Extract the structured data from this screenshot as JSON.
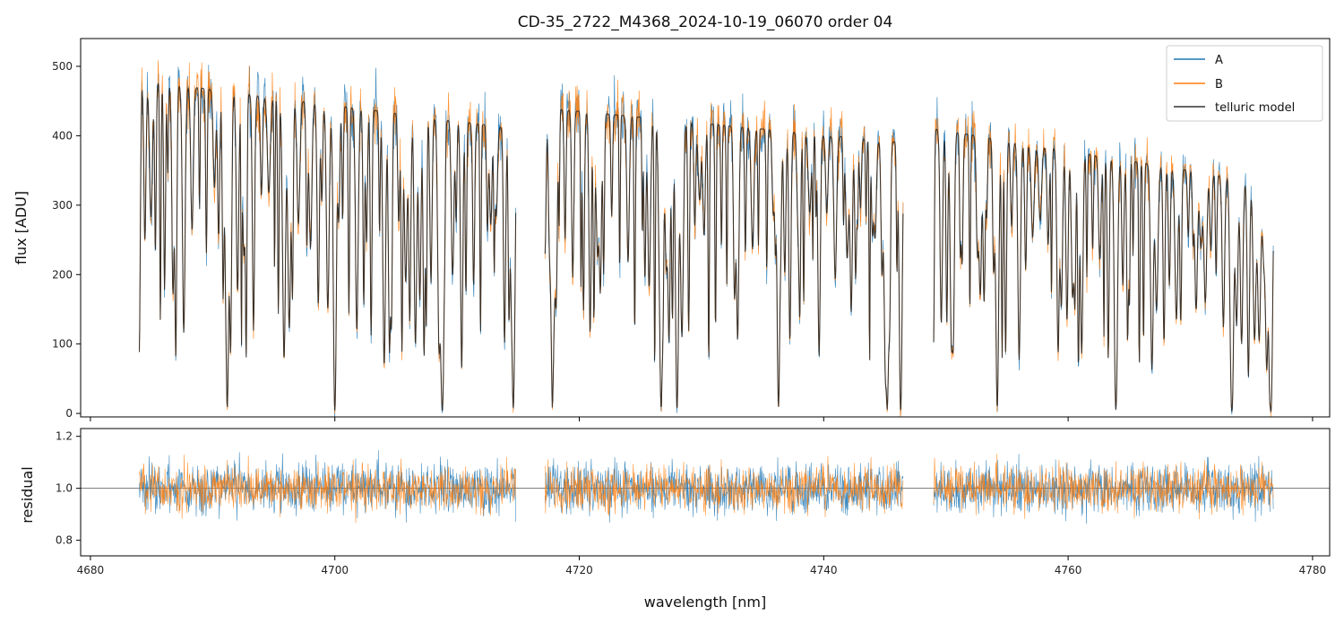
{
  "chart_data": {
    "type": "line",
    "title": "CD-35_2722_M4368_2024-10-19_06070  order 04",
    "xlabel": "wavelength [nm]",
    "xlim": [
      4679.2,
      4781.4
    ],
    "xticks": [
      4680,
      4700,
      4720,
      4740,
      4760,
      4780
    ],
    "colors": {
      "A": "#1f77b4",
      "B": "#ff7f0e",
      "model": "#1a1a1a",
      "unity": "#333333"
    },
    "legend": {
      "position": "top-right",
      "entries": [
        "A",
        "B",
        "telluric model"
      ]
    },
    "panels": {
      "flux": {
        "ylabel": "flux [ADU]",
        "ylim": [
          -5,
          540
        ],
        "yticks": [
          0,
          100,
          200,
          300,
          400,
          500
        ]
      },
      "residual": {
        "ylabel": "residual",
        "ylim": [
          0.74,
          1.23
        ],
        "yticks": [
          0.8,
          1.0,
          1.2
        ],
        "reference_line": 1.0
      }
    },
    "segments": [
      {
        "start": 4684.0,
        "end": 4714.8,
        "continuum_start": 480,
        "continuum_end": 410
      },
      {
        "start": 4717.2,
        "end": 4746.5,
        "continuum_start": 440,
        "continuum_end": 390
      },
      {
        "start": 4749.0,
        "end": 4776.8,
        "continuum_start": 410,
        "continuum_end": 330
      }
    ],
    "deep_absorption_lines": [
      4691.2,
      4700.0,
      4708.8,
      4714.6,
      4717.8,
      4726.7,
      4728.0,
      4736.3,
      4745.2,
      4746.3,
      4754.2,
      4763.9,
      4773.4,
      4776.6
    ],
    "series": [
      {
        "name": "A",
        "panel": "flux+residual",
        "noise_flux": 45,
        "noise_residual": 0.1
      },
      {
        "name": "B",
        "panel": "flux+residual",
        "noise_flux": 45,
        "noise_residual": 0.09
      },
      {
        "name": "telluric model",
        "panel": "flux"
      }
    ]
  }
}
